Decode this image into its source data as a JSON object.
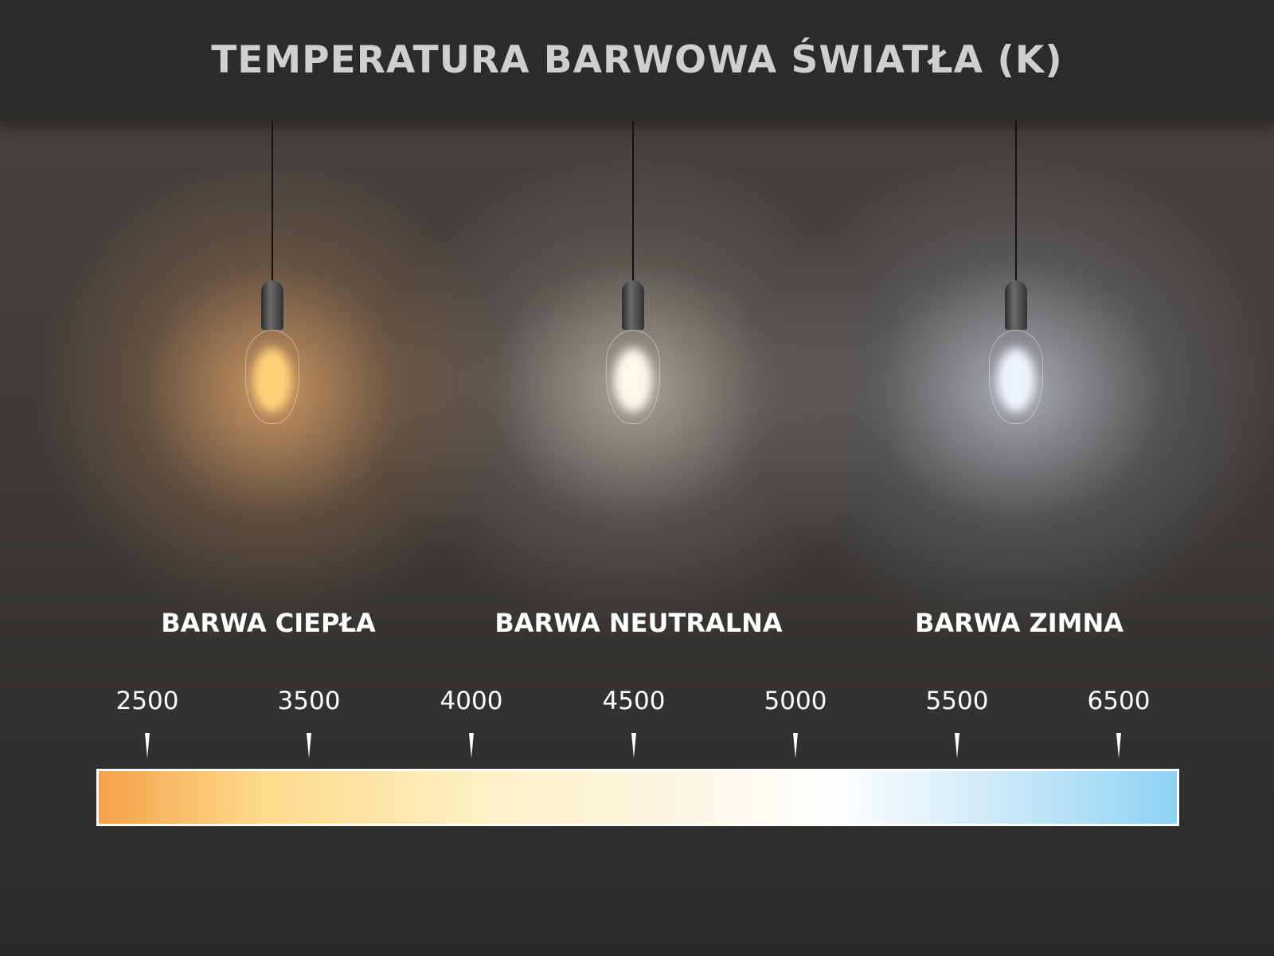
{
  "title": "TEMPERATURA BARWOWA ŚWIATŁA (K)",
  "categories": [
    {
      "label": "BARWA CIEPŁA",
      "glow_color": "#ffd27a"
    },
    {
      "label": "BARWA NEUTRALNA",
      "glow_color": "#fff8ea"
    },
    {
      "label": "BARWA ZIMNA",
      "glow_color": "#eef4ff"
    }
  ],
  "scale": {
    "ticks": [
      "2500",
      "3500",
      "4000",
      "4500",
      "5000",
      "5500",
      "6500"
    ],
    "gradient_colors": [
      "#f5a24a",
      "#fdd98a",
      "#fdf0c4",
      "#ffffff",
      "#8ed2f4"
    ]
  }
}
